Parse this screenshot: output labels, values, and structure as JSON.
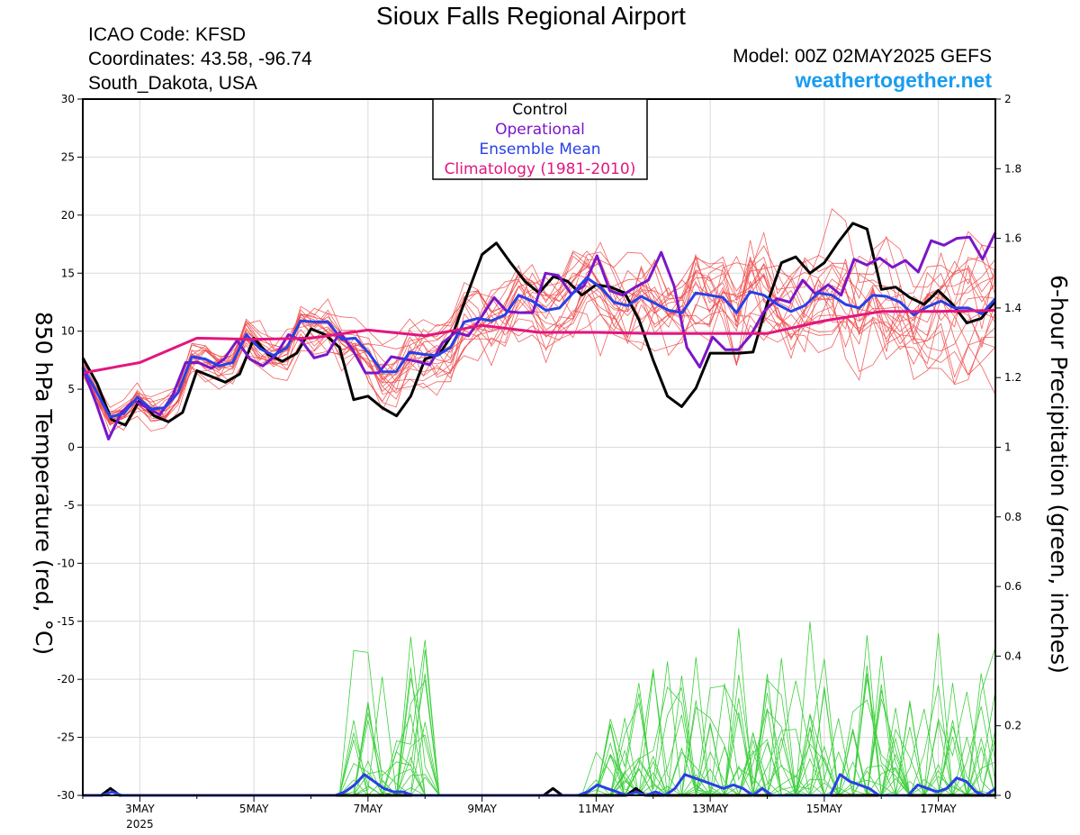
{
  "header": {
    "title": "Sioux Falls Regional Airport",
    "icao": "ICAO Code: KFSD",
    "coordinates": "Coordinates: 43.58, -96.74",
    "region": "South_Dakota, USA",
    "model": "Model: 00Z 02MAY2025 GEFS",
    "site": "weathertogether.net"
  },
  "colors": {
    "control": "#000000",
    "operational": "#7b16c8",
    "ensemble_mean": "#2840e6",
    "climatology": "#e2167f",
    "members_temp": "#f05050",
    "members_precip": "#3ccf3c",
    "site": "#1a9cf0"
  },
  "chart_data": {
    "type": "line",
    "ylabel": "850 hPa Temperature (red, °C)",
    "y2label": "6-hour Precipitation (green, inches)",
    "ylim": [
      -30,
      30
    ],
    "y2lim": [
      0,
      2
    ],
    "yticks": [
      30,
      25,
      20,
      15,
      10,
      5,
      0,
      -5,
      -10,
      -15,
      -20,
      -25,
      -30
    ],
    "y2ticks": [
      2,
      1.8,
      1.6,
      1.4,
      1.2,
      1,
      0.8,
      0.6,
      0.4,
      0.2,
      0
    ],
    "x_range": [
      "2025-05-02 00Z",
      "2025-05-18 00Z"
    ],
    "time_step_hours": 6,
    "xticks": [
      {
        "day": 3,
        "label": "3MAY",
        "sublabel": "2025"
      },
      {
        "day": 5,
        "label": "5MAY"
      },
      {
        "day": 7,
        "label": "7MAY"
      },
      {
        "day": 9,
        "label": "9MAY"
      },
      {
        "day": 11,
        "label": "11MAY"
      },
      {
        "day": 13,
        "label": "13MAY"
      },
      {
        "day": 15,
        "label": "15MAY"
      },
      {
        "day": 17,
        "label": "17MAY"
      }
    ],
    "legend": [
      {
        "label": "Control",
        "color": "#000000"
      },
      {
        "label": "Operational",
        "color": "#7b16c8"
      },
      {
        "label": "Ensemble Mean",
        "color": "#2840e6"
      },
      {
        "label": "Climatology (1981-2010)",
        "color": "#e2167f"
      }
    ],
    "legend_position": "top-center",
    "series": [
      {
        "name": "Control",
        "axis": "temperature",
        "values": [
          7.7,
          5.5,
          2.4,
          1.9,
          4.1,
          2.7,
          2.2,
          3.0,
          6.6,
          6.1,
          5.6,
          6.3,
          9.4,
          8.0,
          7.4,
          8.1,
          10.2,
          9.7,
          8.6,
          4.1,
          4.4,
          3.4,
          2.7,
          4.4,
          7.6,
          8.0,
          9.9,
          13.3,
          16.6,
          17.6,
          15.9,
          14.3,
          13.3,
          14.7,
          14.3,
          13.1,
          14.0,
          13.8,
          13.3,
          11.0,
          7.5,
          4.4,
          3.5,
          5.1,
          8.1,
          8.1,
          8.1,
          8.2,
          12.4,
          15.9,
          16.4,
          15.0,
          15.9,
          17.7,
          19.3,
          18.8,
          13.6,
          13.8,
          12.9,
          12.3,
          13.5,
          12.3,
          10.7,
          11.1,
          12.6
        ]
      },
      {
        "name": "Operational",
        "axis": "temperature",
        "values": [
          6.8,
          3.9,
          0.7,
          3.0,
          4.0,
          3.4,
          2.8,
          4.5,
          7.3,
          7.3,
          6.8,
          7.6,
          9.2,
          7.6,
          7.0,
          7.9,
          9.7,
          9.2,
          7.7,
          8.0,
          9.9,
          8.4,
          6.4,
          6.4,
          7.8,
          7.6,
          7.4,
          7.1,
          9.0,
          9.9,
          9.6,
          11.2,
          12.9,
          11.7,
          11.6,
          11.6,
          15.0,
          14.8,
          13.2,
          13.9,
          16.5,
          13.5,
          13.1,
          13.8,
          14.4,
          16.8,
          13.9,
          8.6,
          6.9,
          9.5,
          8.4,
          8.4,
          9.7,
          11.7,
          12.8,
          12.5,
          14.4,
          13.2,
          14.0,
          13.1,
          16.2,
          15.7,
          16.3,
          15.5,
          16.1,
          15.1,
          17.8,
          17.4,
          18.0,
          18.1,
          16.2,
          18.5
        ]
      },
      {
        "name": "Ensemble Mean",
        "axis": "temperature",
        "values": [
          6.9,
          4.8,
          2.6,
          2.9,
          4.3,
          3.3,
          3.4,
          4.7,
          7.8,
          7.6,
          7.0,
          7.3,
          9.7,
          8.5,
          7.9,
          8.6,
          10.9,
          10.8,
          10.8,
          9.3,
          9.4,
          8.1,
          6.5,
          6.5,
          8.2,
          8.0,
          7.9,
          8.6,
          10.8,
          11.1,
          10.9,
          11.4,
          13.1,
          12.6,
          11.8,
          12.0,
          13.3,
          14.6,
          13.8,
          12.5,
          12.2,
          13.0,
          12.4,
          11.8,
          11.6,
          13.3,
          13.1,
          12.9,
          11.6,
          13.4,
          13.1,
          12.3,
          11.7,
          12.2,
          13.3,
          13.1,
          12.3,
          12.0,
          13.1,
          13.0,
          12.5,
          11.4,
          12.1,
          12.6,
          12.0,
          12.0,
          11.5,
          12.8
        ]
      },
      {
        "name": "Climatology (1981-2010)",
        "axis": "temperature",
        "values": [
          6.4,
          7.3,
          9.4,
          9.3,
          9.4,
          10.1,
          9.6,
          10.5,
          9.9,
          9.9,
          9.8,
          9.8,
          9.8,
          10.9,
          11.7,
          11.7,
          11.8
        ]
      },
      {
        "name": "Control precipitation",
        "axis": "precipitation",
        "values": [
          0.0,
          0.0,
          0.0,
          0.02,
          0.0,
          0.0,
          0.0,
          0.0,
          0.0,
          0.0,
          0.0,
          0.0,
          0.0,
          0.0,
          0.0,
          0.0,
          0.0,
          0.0,
          0.0,
          0.0,
          0.0,
          0.0,
          0.0,
          0.0,
          0.0,
          0.0,
          0.0,
          0.0,
          0.0,
          0.0,
          0.0,
          0.0,
          0.0,
          0.0,
          0.0,
          0.0,
          0.0,
          0.0,
          0.0,
          0.0,
          0.0,
          0.0,
          0.0,
          0.0,
          0.0,
          0.0,
          0.0,
          0.0,
          0.0,
          0.0,
          0.0,
          0.02,
          0.0,
          0.0,
          0.0,
          0.0,
          0.0,
          0.0,
          0.0,
          0.0,
          0.02,
          0.0,
          0.0,
          0.0,
          0.0,
          0.0,
          0.0,
          0.0,
          0.0,
          0.0,
          0.0,
          0.0,
          0.0,
          0.0,
          0.0,
          0.0,
          0.0,
          0.0,
          0.0,
          0.0,
          0.0,
          0.0,
          0.0,
          0.0,
          0.0,
          0.0,
          0.0,
          0.0,
          0.0,
          0.0,
          0.0,
          0.0,
          0.0,
          0.0,
          0.0,
          0.0,
          0.0,
          0.0,
          0.0,
          0.0
        ]
      },
      {
        "name": "Ensemble mean precipitation",
        "axis": "precipitation",
        "values": [
          0.0,
          0.0,
          0.0,
          0.01,
          0.0,
          0.0,
          0.0,
          0.0,
          0.0,
          0.0,
          0.0,
          0.0,
          0.0,
          0.0,
          0.0,
          0.0,
          0.0,
          0.0,
          0.0,
          0.0,
          0.0,
          0.0,
          0.0,
          0.0,
          0.0,
          0.0,
          0.0,
          0.01,
          0.03,
          0.06,
          0.04,
          0.02,
          0.01,
          0.01,
          0.0,
          0.0,
          0.0,
          0.0,
          0.0,
          0.0,
          0.0,
          0.0,
          0.0,
          0.0,
          0.0,
          0.0,
          0.0,
          0.0,
          0.0,
          0.0,
          0.0,
          0.0,
          0.01,
          0.03,
          0.02,
          0.01,
          0.0,
          0.01,
          0.0,
          0.01,
          0.0,
          0.02,
          0.06,
          0.05,
          0.04,
          0.03,
          0.02,
          0.03,
          0.02,
          0.0,
          0.02,
          0.0,
          0.0,
          0.0,
          0.0,
          0.0,
          0.0,
          0.0,
          0.06,
          0.04,
          0.03,
          0.02,
          0.0,
          0.0,
          0.0,
          0.0,
          0.03,
          0.02,
          0.01,
          0.02,
          0.05,
          0.04,
          0.01,
          0.0,
          0.02
        ]
      }
    ],
    "ensemble_members": {
      "axis": "temperature",
      "approx_count": 20,
      "description_values": "individual GEFS members spread around the ensemble mean, roughly 0 to 23 °C after 9MAY"
    }
  }
}
